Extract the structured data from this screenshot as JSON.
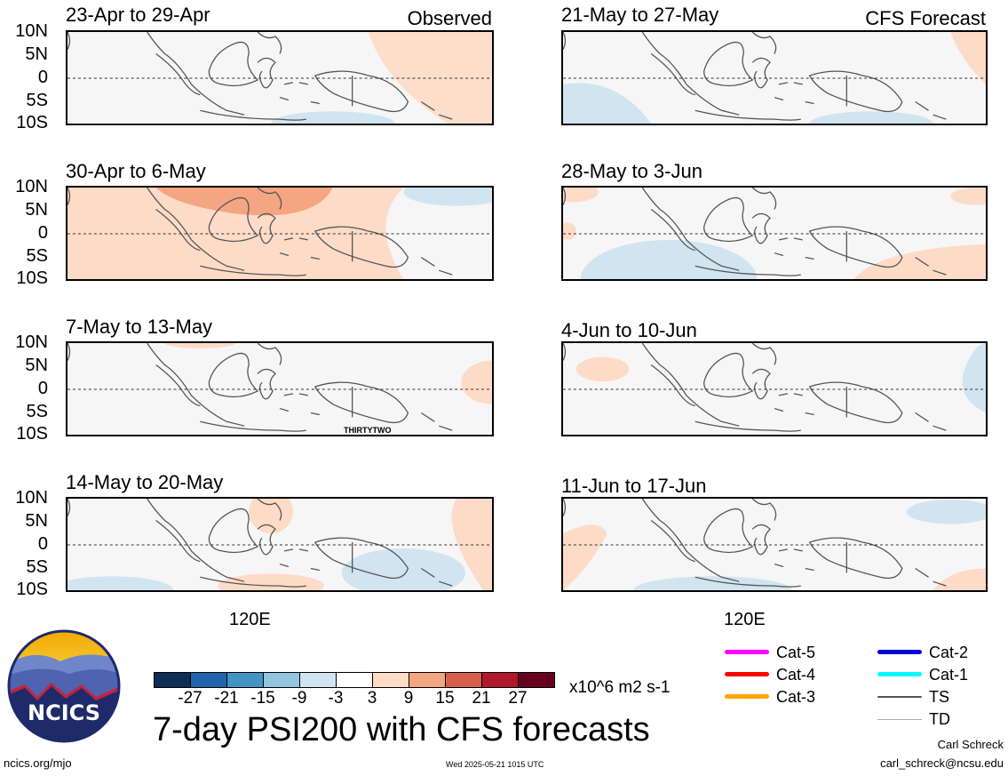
{
  "panel_titles": {
    "left": [
      "23-Apr to 29-Apr",
      "30-Apr to 6-May",
      "7-May to 13-May",
      "14-May to 20-May"
    ],
    "right": [
      "21-May to 27-May",
      "28-May to 3-Jun",
      "4-Jun to 10-Jun",
      "11-Jun to 17-Jun"
    ]
  },
  "column_tags": {
    "left": "Observed",
    "right": "CFS Forecast"
  },
  "lat_labels": [
    "10N",
    "5N",
    "0",
    "5S",
    "10S"
  ],
  "lon_label": "120E",
  "storm_annotation": "THIRTYTWO",
  "colorbar": {
    "colors": [
      "#0d2d55",
      "#2166ac",
      "#4393c3",
      "#92c5de",
      "#d1e5f0",
      "#ffffff",
      "#fddbc7",
      "#f4a582",
      "#d6604d",
      "#b2182b",
      "#67001f"
    ],
    "ticks": [
      "-27",
      "-21",
      "-15",
      "-9",
      "-3",
      "3",
      "9",
      "15",
      "21",
      "27"
    ],
    "units": "x10^6 m2 s-1"
  },
  "title": "7-day PSI200 with CFS forecasts",
  "legend": [
    {
      "label": "Cat-5",
      "color": "#ff00ff"
    },
    {
      "label": "Cat-4",
      "color": "#ff0000"
    },
    {
      "label": "Cat-3",
      "color": "#ffa500"
    },
    {
      "label": "Cat-2",
      "color": "#0000dd"
    },
    {
      "label": "Cat-1",
      "color": "#00ffff"
    },
    {
      "label": "TS",
      "color": "#555555"
    },
    {
      "label": "TD",
      "color": "#aaaaaa"
    }
  ],
  "logo_text": "NCICS",
  "footer": {
    "url": "ncics.org/mjo",
    "timestamp": "Wed 2025-05-21 1015 UTC",
    "author": "Carl Schreck",
    "email": "carl_schreck@ncsu.edu"
  }
}
